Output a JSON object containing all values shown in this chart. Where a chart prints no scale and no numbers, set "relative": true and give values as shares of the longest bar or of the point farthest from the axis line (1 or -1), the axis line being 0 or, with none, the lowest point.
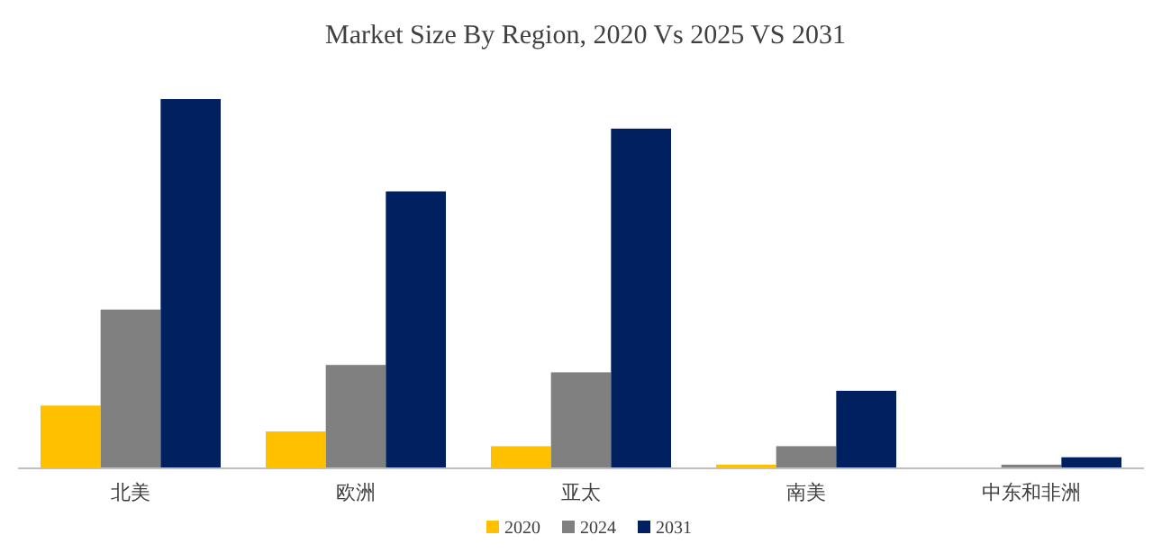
{
  "chart_data": {
    "type": "bar",
    "title": "Market Size By Region, 2020 Vs 2025 VS 2031",
    "relative": true,
    "categories": [
      "北美",
      "欧洲",
      "亚太",
      "南美",
      "中东和非洲"
    ],
    "series": [
      {
        "name": "2020",
        "color": "#ffc000",
        "values": [
          0.17,
          0.1,
          0.06,
          0.01,
          0
        ]
      },
      {
        "name": "2024",
        "color": "#808080",
        "values": [
          0.43,
          0.28,
          0.26,
          0.06,
          0.01
        ]
      },
      {
        "name": "2031",
        "color": "#002060",
        "values": [
          1,
          0.75,
          0.92,
          0.21,
          0.03
        ]
      }
    ],
    "legend": "bottom",
    "grid": false
  }
}
